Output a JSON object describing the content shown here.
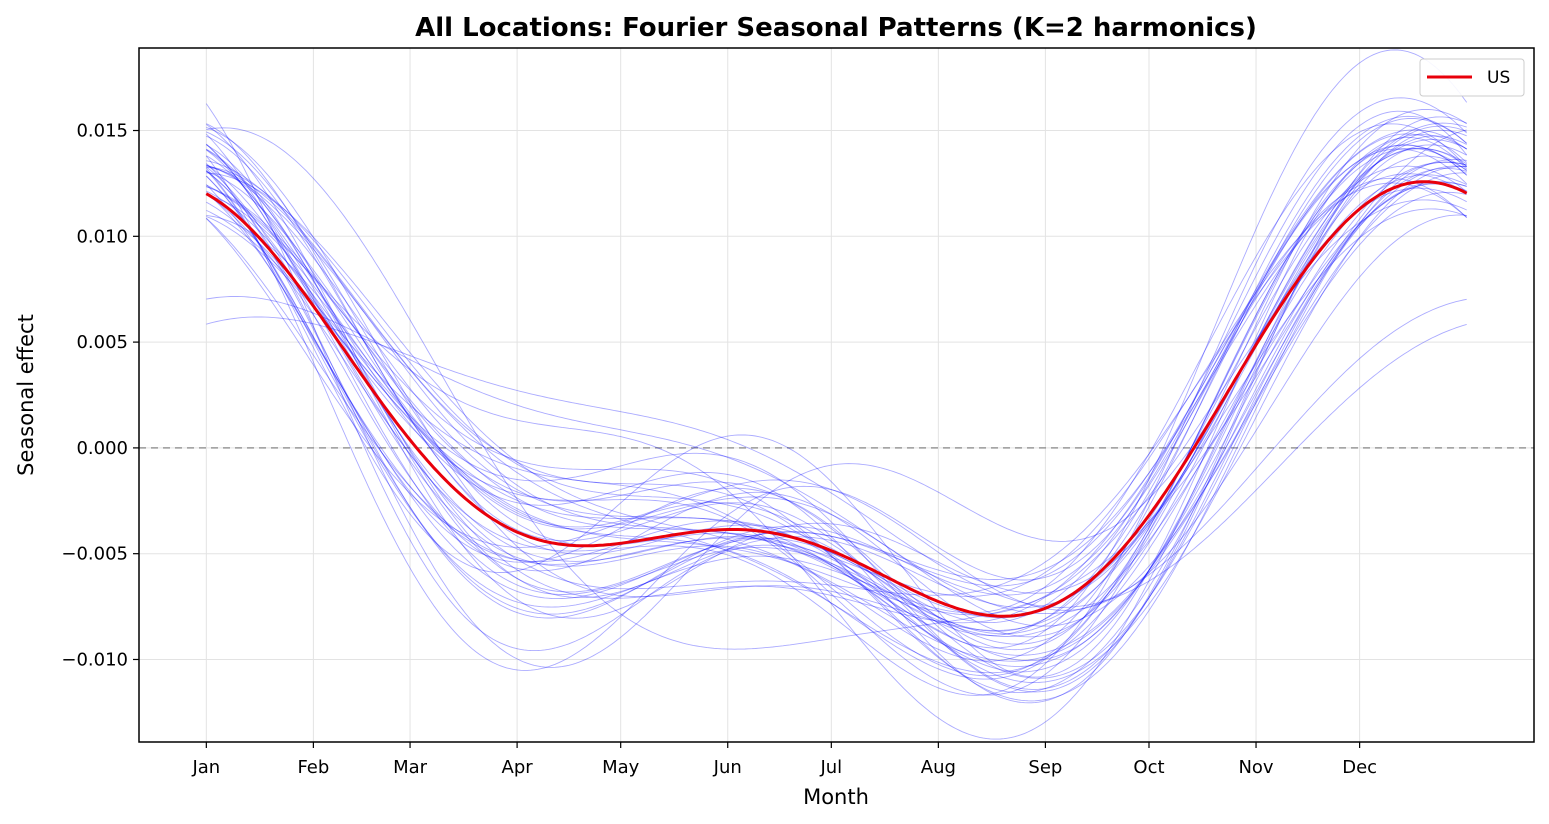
{
  "chart_data": {
    "type": "line",
    "title": "All Locations: Fourier Seasonal Patterns (K=2 harmonics)",
    "xlabel": "Month",
    "ylabel": "Seasonal effect",
    "x_tick_labels": [
      "Jan",
      "Feb",
      "Mar",
      "Apr",
      "May",
      "Jun",
      "Jul",
      "Aug",
      "Sep",
      "Oct",
      "Nov",
      "Dec"
    ],
    "x_ticks": [
      1,
      32,
      60,
      91,
      121,
      152,
      182,
      213,
      244,
      274,
      305,
      335
    ],
    "x_range": [
      1,
      366
    ],
    "xlim": [
      -18.5,
      385.5
    ],
    "ylim": [
      -0.0139,
      0.0189
    ],
    "y_ticks": [
      -0.01,
      -0.005,
      0.0,
      0.005,
      0.01,
      0.015
    ],
    "y_tick_labels": [
      "−0.010",
      "−0.005",
      "0.000",
      "0.005",
      "0.010",
      "0.015"
    ],
    "grid": true,
    "zero_line": true,
    "legend": {
      "placement": "top-right",
      "entries": [
        "US"
      ]
    },
    "series": [
      {
        "name": "US",
        "color": "#e8000b",
        "coeffs": [
          -0.0004,
          0.0085,
          -0.0022,
          0.0036
        ]
      },
      {
        "color": "#0000ff",
        "coeffs": [
          -0.0007,
          0.0094,
          -0.0026,
          0.0041
        ]
      },
      {
        "color": "#0000ff",
        "coeffs": [
          0.001,
          0.009,
          -0.0018,
          0.0034
        ]
      },
      {
        "color": "#0000ff",
        "coeffs": [
          -0.002,
          0.01,
          -0.003,
          0.0045
        ]
      },
      {
        "color": "#0000ff",
        "coeffs": [
          0.0005,
          0.008,
          -0.002,
          0.003
        ]
      },
      {
        "color": "#0000ff",
        "coeffs": [
          -0.0012,
          0.0105,
          -0.0035,
          0.004
        ]
      },
      {
        "color": "#0000ff",
        "coeffs": [
          0.002,
          0.0095,
          -0.0015,
          0.0038
        ]
      },
      {
        "color": "#0000ff",
        "coeffs": [
          -0.003,
          0.0088,
          -0.0028,
          0.0048
        ]
      },
      {
        "color": "#0000ff",
        "coeffs": [
          0.0015,
          0.0092,
          -0.0032,
          0.0025
        ]
      },
      {
        "color": "#0000ff",
        "coeffs": [
          -0.0005,
          0.011,
          -0.0012,
          0.0042
        ]
      },
      {
        "color": "#0000ff",
        "coeffs": [
          0.0025,
          0.0085,
          -0.0025,
          0.0046
        ]
      },
      {
        "color": "#0000ff",
        "coeffs": [
          -0.0015,
          0.0078,
          -0.0038,
          0.0032
        ]
      },
      {
        "color": "#0000ff",
        "coeffs": [
          0.0008,
          0.0098,
          -0.0022,
          0.005
        ]
      },
      {
        "color": "#0000ff",
        "coeffs": [
          -0.0025,
          0.0093,
          -0.0018,
          0.0028
        ]
      },
      {
        "color": "#0000ff",
        "coeffs": [
          0.003,
          0.0088,
          -0.003,
          0.0036
        ]
      },
      {
        "color": "#0000ff",
        "coeffs": [
          -0.001,
          0.0102,
          -0.0026,
          0.0052
        ]
      },
      {
        "color": "#0000ff",
        "coeffs": [
          0.0012,
          0.0076,
          -0.0016,
          0.0044
        ]
      },
      {
        "color": "#0000ff",
        "coeffs": [
          -0.0035,
          0.0096,
          -0.0034,
          0.0038
        ]
      },
      {
        "color": "#0000ff",
        "coeffs": [
          0.0018,
          0.0104,
          -0.002,
          0.003
        ]
      },
      {
        "color": "#0000ff",
        "coeffs": [
          -0.0008,
          0.0084,
          -0.004,
          0.0046
        ]
      },
      {
        "color": "#0000ff",
        "coeffs": [
          0.0035,
          0.0094,
          -0.0024,
          0.0042
        ]
      },
      {
        "color": "#0000ff",
        "coeffs": [
          -0.0018,
          0.009,
          -0.0014,
          0.0054
        ]
      },
      {
        "color": "#0000ff",
        "coeffs": [
          0.0004,
          0.0108,
          -0.003,
          0.0034
        ]
      },
      {
        "color": "#0000ff",
        "coeffs": [
          -0.0028,
          0.0082,
          -0.0024,
          0.004
        ]
      },
      {
        "color": "#0000ff",
        "coeffs": [
          0.0022,
          0.0091,
          -0.0036,
          0.0048
        ]
      },
      {
        "color": "#0000ff",
        "coeffs": [
          -0.0003,
          0.0087,
          -0.0019,
          0.0026
        ]
      },
      {
        "color": "#0000ff",
        "coeffs": [
          0.0016,
          0.0099,
          -0.0028,
          0.0055
        ]
      },
      {
        "color": "#0000ff",
        "coeffs": [
          -0.0022,
          0.0106,
          -0.0022,
          0.0036
        ]
      },
      {
        "color": "#0000ff",
        "coeffs": [
          0.0028,
          0.0079,
          -0.0033,
          0.0043
        ]
      },
      {
        "color": "#0000ff",
        "coeffs": [
          -0.0013,
          0.0093,
          -0.0017,
          0.0049
        ]
      },
      {
        "color": "#0000ff",
        "coeffs": [
          0.0009,
          0.0101,
          -0.0039,
          0.0031
        ]
      },
      {
        "color": "#0000ff",
        "coeffs": [
          -0.0032,
          0.0086,
          -0.0027,
          0.0044
        ]
      },
      {
        "color": "#0000ff",
        "coeffs": [
          0.0019,
          0.0095,
          -0.0021,
          0.0039
        ]
      },
      {
        "color": "#0000ff",
        "coeffs": [
          -0.0006,
          0.0083,
          -0.0031,
          0.0051
        ]
      },
      {
        "color": "#0000ff",
        "coeffs": [
          0.0026,
          0.0097,
          -0.0013,
          0.0033
        ]
      },
      {
        "color": "#0000ff",
        "coeffs": [
          -0.0016,
          0.0089,
          -0.0037,
          0.0037
        ]
      },
      {
        "color": "#0000ff",
        "coeffs": [
          0.0011,
          0.0103,
          -0.0023,
          0.0047
        ]
      },
      {
        "color": "#0000ff",
        "coeffs": [
          -0.0024,
          0.0081,
          -0.0029,
          0.0029
        ]
      },
      {
        "color": "#0000ff",
        "coeffs": [
          0.0033,
          0.0092,
          -0.0018,
          0.0041
        ]
      },
      {
        "color": "#0000ff",
        "coeffs": [
          0.004,
          0.005,
          -0.001,
          0.002
        ]
      },
      {
        "color": "#0000ff",
        "coeffs": [
          0.0045,
          0.004,
          -0.0008,
          0.0018
        ]
      },
      {
        "color": "#0000ff",
        "coeffs": [
          -0.0045,
          0.008,
          -0.0035,
          0.006
        ]
      },
      {
        "color": "#0000ff",
        "coeffs": [
          -0.004,
          0.011,
          -0.0045,
          0.0055
        ]
      },
      {
        "color": "#0000ff",
        "coeffs": [
          0.0005,
          0.012,
          0.001,
          0.003
        ]
      },
      {
        "color": "#0000ff",
        "coeffs": [
          0.0,
          0.0075,
          -0.0048,
          0.0058
        ]
      },
      {
        "color": "#0000ff",
        "coeffs": [
          0.0038,
          0.01,
          -0.004,
          0.0025
        ]
      },
      {
        "color": "#0000ff",
        "coeffs": [
          -0.0038,
          0.007,
          -0.0012,
          0.0062
        ]
      },
      {
        "color": "#0000ff",
        "coeffs": [
          0.0014,
          0.0065,
          -0.001,
          0.0045
        ]
      },
      {
        "color": "#0000ff",
        "coeffs": [
          -0.001,
          0.0115,
          -0.0042,
          0.0035
        ]
      }
    ]
  }
}
